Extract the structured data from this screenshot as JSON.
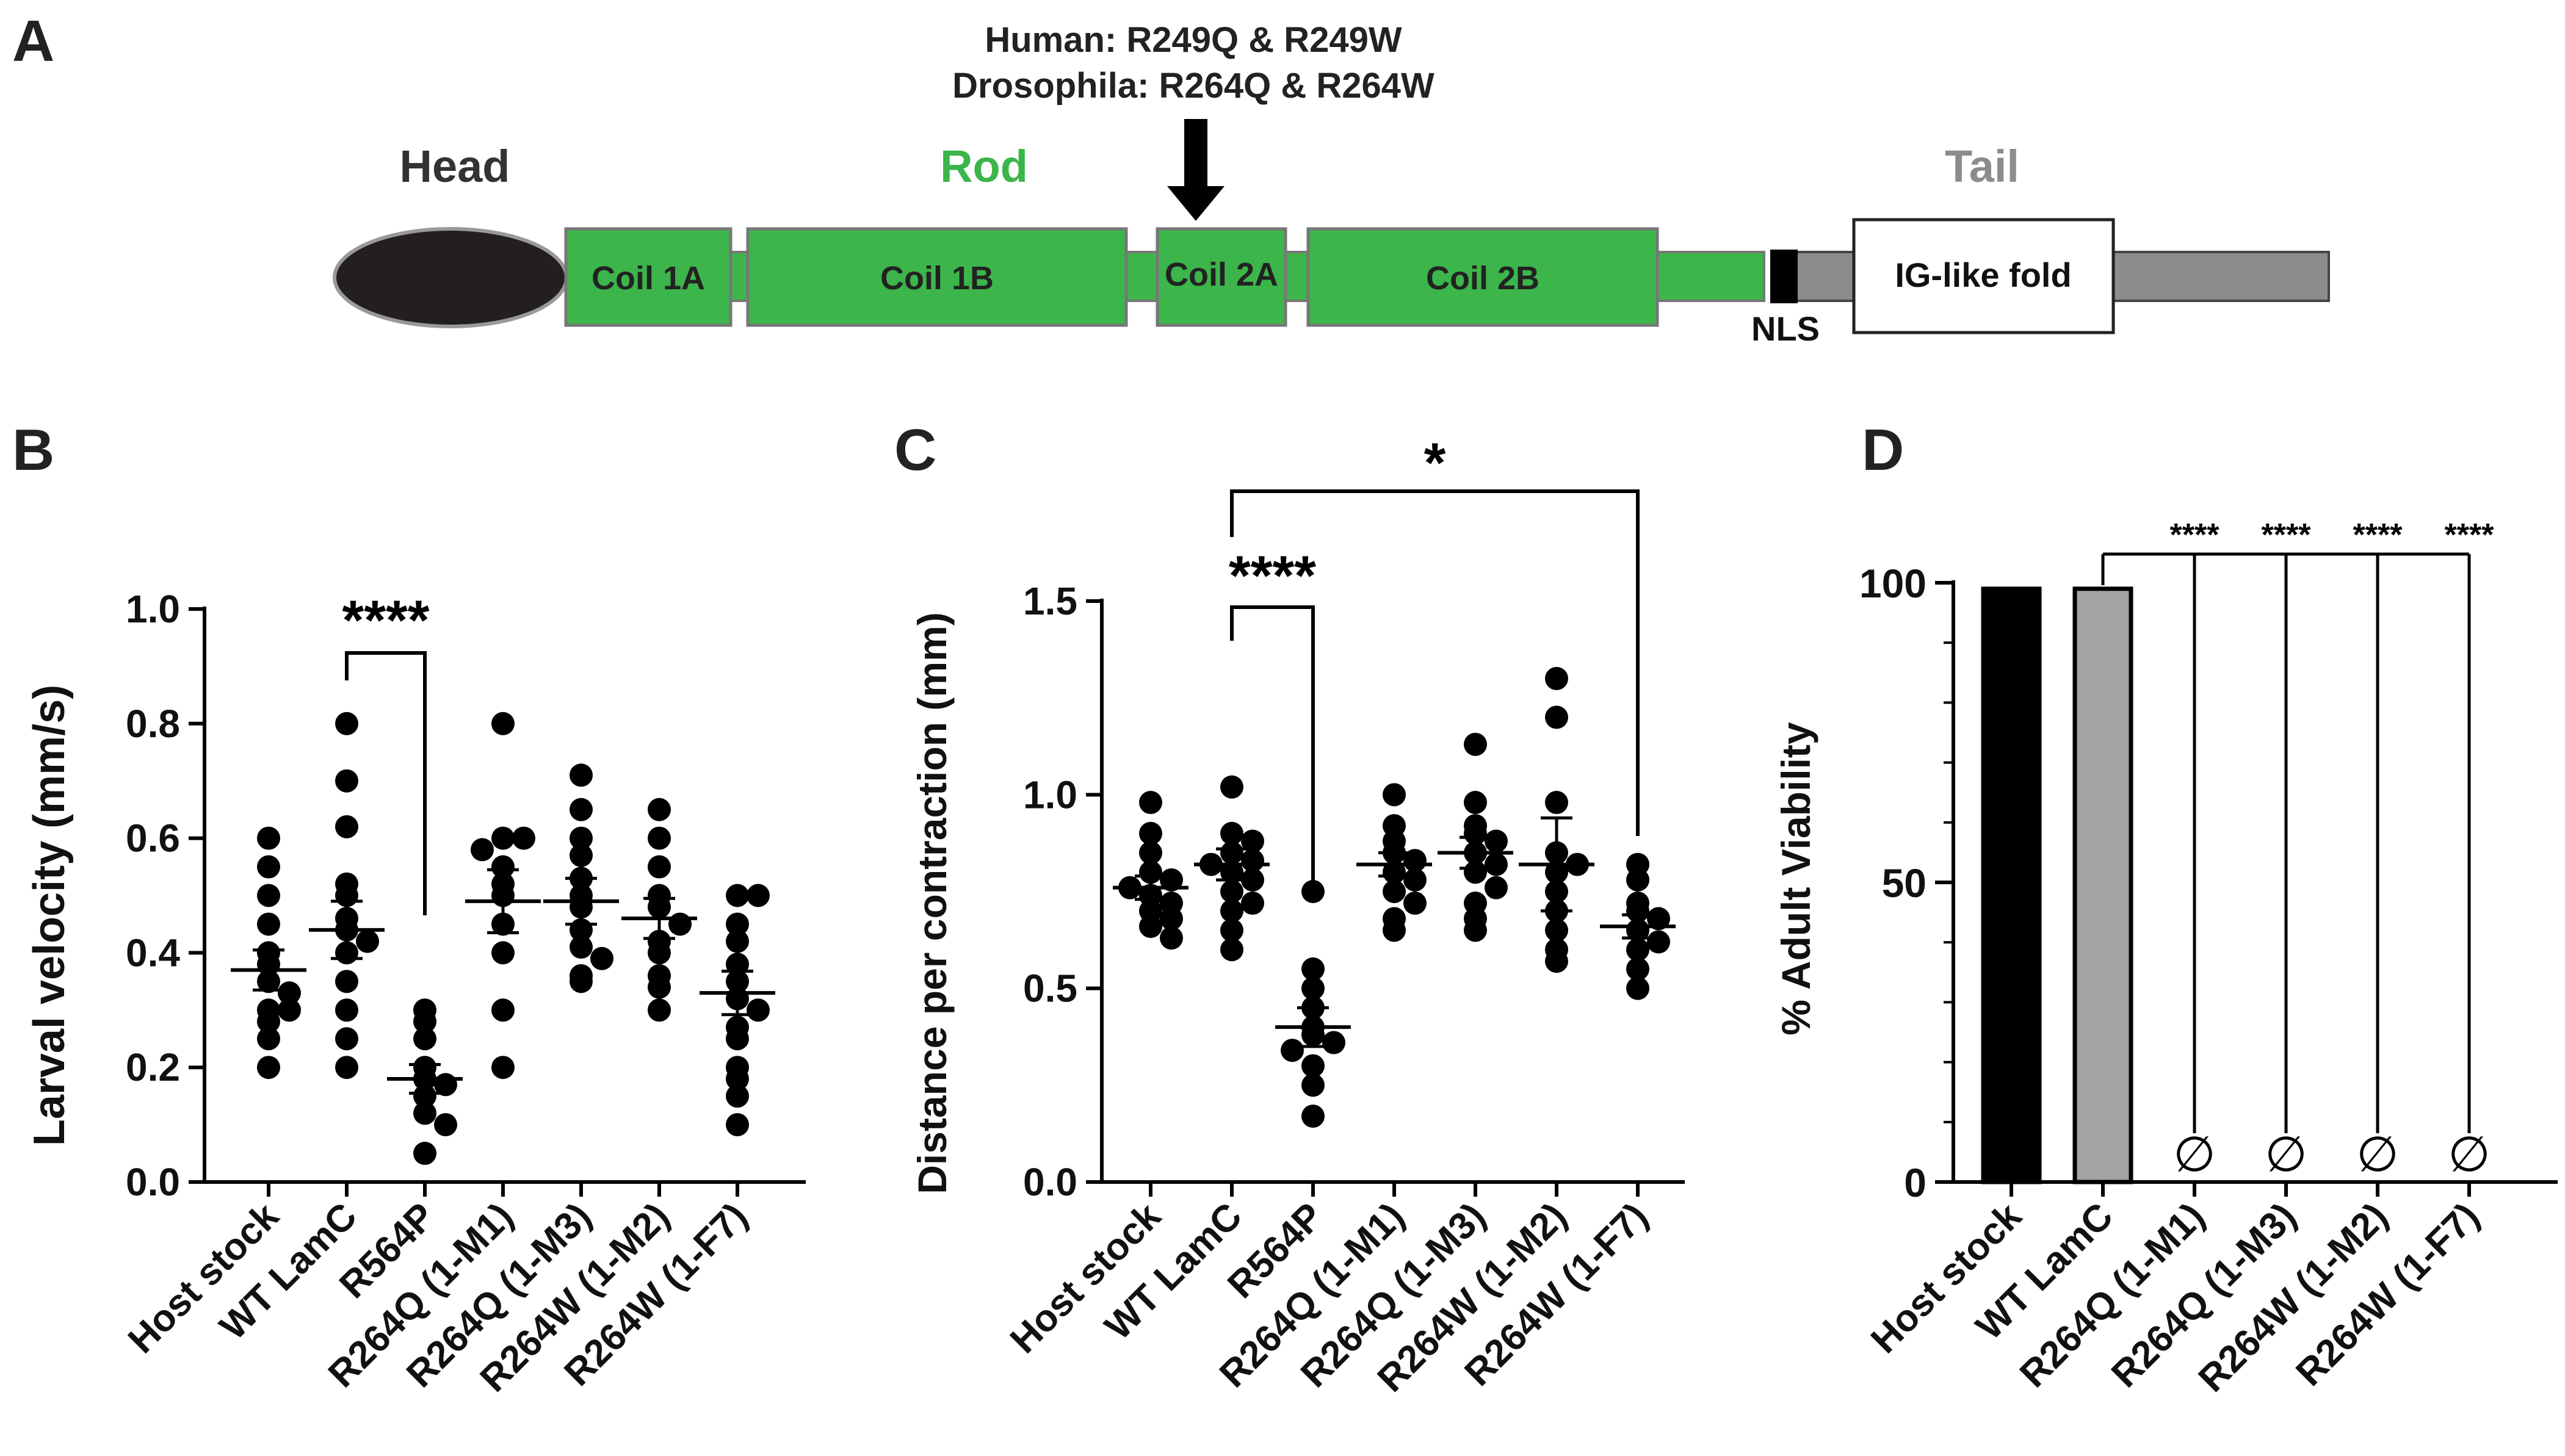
{
  "panels": {
    "A": "A",
    "B": "B",
    "C": "C",
    "D": "D"
  },
  "panel_a": {
    "mutation_line1": "Human: R249Q & R249W",
    "mutation_line2": "Drosophila: R264Q & R264W",
    "head_label": "Head",
    "rod_label": "Rod",
    "tail_label": "Tail",
    "coil_1a": "Coil 1A",
    "coil_1b": "Coil 1B",
    "coil_2a": "Coil 2A",
    "coil_2b": "Coil 2B",
    "nls": "NLS",
    "ig_fold": "IG-like fold",
    "colors": {
      "rod": "#3cb54a",
      "tail": "#8c8c8e",
      "head": "#231f20"
    }
  },
  "chart_data": [
    {
      "id": "B",
      "type": "scatter",
      "ylabel": "Larval velocity (mm/s)",
      "ylim": [
        0,
        1.0
      ],
      "yticks": [
        "0.0",
        "0.2",
        "0.4",
        "0.6",
        "0.8",
        "1.0"
      ],
      "ytick_values": [
        0,
        0.2,
        0.4,
        0.6,
        0.8,
        1.0
      ],
      "categories": [
        "Host stock",
        "WT LamC",
        "R564P",
        "R264Q (1-M1)",
        "R264Q (1-M3)",
        "R264W (1-M2)",
        "R264W (1-F7)"
      ],
      "points": [
        [
          0.6,
          0.55,
          0.5,
          0.45,
          0.4,
          0.38,
          0.35,
          0.33,
          0.3,
          0.3,
          0.28,
          0.25,
          0.2
        ],
        [
          0.8,
          0.7,
          0.62,
          0.52,
          0.5,
          0.46,
          0.44,
          0.42,
          0.4,
          0.35,
          0.3,
          0.25,
          0.2
        ],
        [
          0.3,
          0.28,
          0.25,
          0.2,
          0.18,
          0.17,
          0.15,
          0.12,
          0.1,
          0.05
        ],
        [
          0.8,
          0.6,
          0.6,
          0.58,
          0.55,
          0.52,
          0.5,
          0.45,
          0.4,
          0.3,
          0.2
        ],
        [
          0.71,
          0.65,
          0.6,
          0.57,
          0.53,
          0.5,
          0.48,
          0.44,
          0.41,
          0.39,
          0.36,
          0.35
        ],
        [
          0.65,
          0.6,
          0.55,
          0.5,
          0.48,
          0.45,
          0.42,
          0.4,
          0.36,
          0.34,
          0.3
        ],
        [
          0.5,
          0.5,
          0.45,
          0.42,
          0.38,
          0.35,
          0.32,
          0.3,
          0.27,
          0.25,
          0.2,
          0.18,
          0.15,
          0.1
        ]
      ],
      "means": [
        0.37,
        0.44,
        0.18,
        0.49,
        0.49,
        0.46,
        0.33
      ],
      "sems": [
        0.035,
        0.05,
        0.025,
        0.055,
        0.04,
        0.035,
        0.038
      ],
      "brackets": [
        {
          "from": 1,
          "to": 2,
          "label": "****"
        }
      ]
    },
    {
      "id": "C",
      "type": "scatter",
      "ylabel": "Distance per contraction (mm)",
      "ylim": [
        0,
        1.5
      ],
      "yticks": [
        "0.0",
        "0.5",
        "1.0",
        "1.5"
      ],
      "ytick_values": [
        0,
        0.5,
        1.0,
        1.5
      ],
      "categories": [
        "Host stock",
        "WT LamC",
        "R564P",
        "R264Q (1-M1)",
        "R264Q (1-M3)",
        "R264W (1-M2)",
        "R264W (1-F7)"
      ],
      "points": [
        [
          0.98,
          0.9,
          0.85,
          0.8,
          0.78,
          0.76,
          0.74,
          0.72,
          0.7,
          0.68,
          0.66,
          0.63
        ],
        [
          1.02,
          0.9,
          0.88,
          0.85,
          0.83,
          0.82,
          0.8,
          0.78,
          0.75,
          0.72,
          0.7,
          0.65,
          0.6
        ],
        [
          0.75,
          0.55,
          0.5,
          0.45,
          0.4,
          0.38,
          0.36,
          0.34,
          0.3,
          0.25,
          0.17
        ],
        [
          1.0,
          0.92,
          0.88,
          0.85,
          0.83,
          0.8,
          0.78,
          0.75,
          0.72,
          0.68,
          0.65
        ],
        [
          1.13,
          0.98,
          0.92,
          0.9,
          0.88,
          0.85,
          0.82,
          0.8,
          0.76,
          0.72,
          0.68,
          0.65
        ],
        [
          1.3,
          1.2,
          0.98,
          0.85,
          0.82,
          0.8,
          0.75,
          0.7,
          0.65,
          0.6,
          0.57
        ],
        [
          0.82,
          0.78,
          0.72,
          0.7,
          0.68,
          0.65,
          0.62,
          0.6,
          0.55,
          0.5
        ]
      ],
      "means": [
        0.76,
        0.82,
        0.4,
        0.82,
        0.85,
        0.82,
        0.66
      ],
      "sems": [
        0.03,
        0.04,
        0.05,
        0.03,
        0.04,
        0.12,
        0.03
      ],
      "brackets": [
        {
          "from": 1,
          "to": 2,
          "label": "****"
        },
        {
          "from": 1,
          "to": 6,
          "label": "*"
        }
      ]
    },
    {
      "id": "D",
      "type": "bar",
      "ylabel": "% Adult Viability",
      "ylim": [
        0,
        100
      ],
      "yticks": [
        "0",
        "50",
        "100"
      ],
      "ytick_values": [
        0,
        50,
        100
      ],
      "categories": [
        "Host stock",
        "WT LamC",
        "R264Q (1-M1)",
        "R264Q (1-M3)",
        "R264W (1-M2)",
        "R264W (1-F7)"
      ],
      "values": [
        99,
        99,
        0,
        0,
        0,
        0
      ],
      "zero_marker": "∅",
      "bar_colors": [
        "#000000",
        "#a3a3a5",
        "#ffffff",
        "#ffffff",
        "#ffffff",
        "#ffffff"
      ],
      "significance": "****"
    }
  ]
}
